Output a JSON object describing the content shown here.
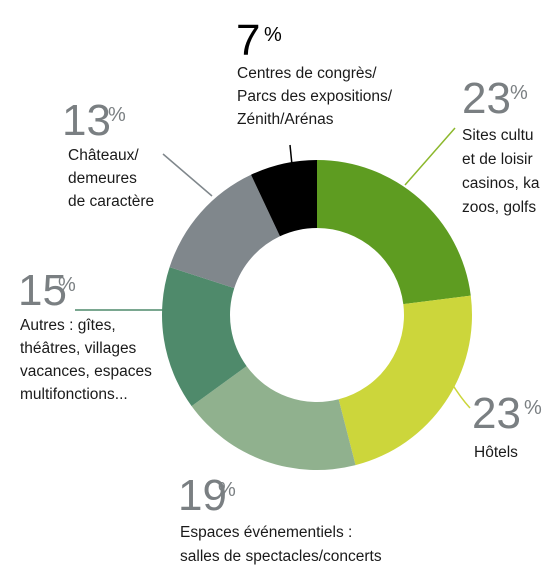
{
  "chart_data": {
    "type": "donut",
    "unit": "%",
    "categories": [
      [
        "Sites cultu",
        "et de loisir",
        "casinos, ka",
        "zoos, golfs"
      ],
      [
        "Hôtels"
      ],
      [
        "Espaces événementiels :",
        "salles de spectacles/concerts"
      ],
      [
        "Autres : gîtes,",
        "théâtres, villages",
        "vacances, espaces",
        "multifonctions..."
      ],
      [
        "Châteaux/",
        "demeures",
        "de caractère"
      ],
      [
        "Centres de congrès/",
        "Parcs des expositions/",
        "Zénith/Arénas"
      ]
    ],
    "values": [
      23,
      23,
      19,
      15,
      13,
      7
    ],
    "colors": [
      "#5e9c21",
      "#ccd63b",
      "#90b18e",
      "#4f8a6b",
      "#80878c",
      "#000000"
    ]
  }
}
